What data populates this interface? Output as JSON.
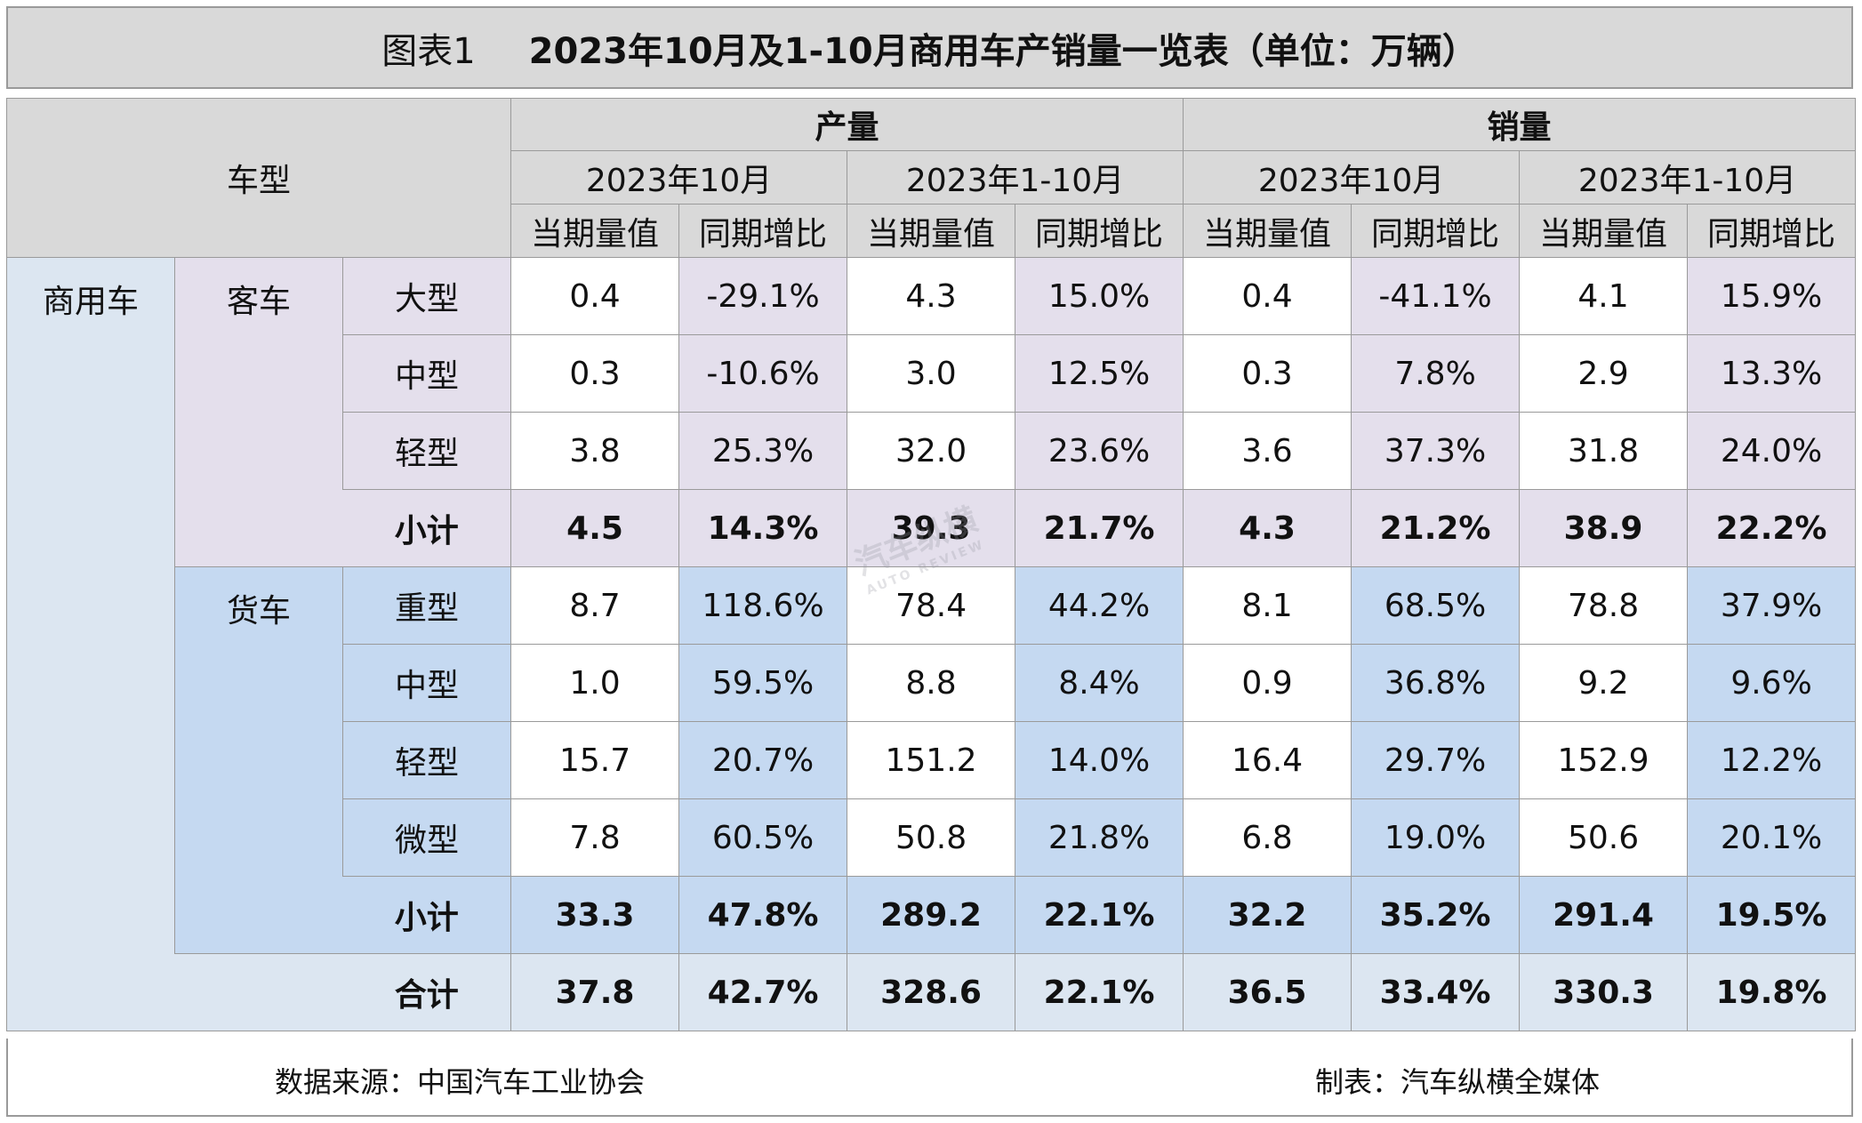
{
  "title": {
    "label": "图表1",
    "text": "2023年10月及1-10月商用车产销量一览表（单位：万辆）"
  },
  "colors": {
    "header": "#d9d9d9",
    "commercial": "#dce6f1",
    "bus": "#e4dfec",
    "truck": "#c5d9f1",
    "white": "#ffffff"
  },
  "header": {
    "vehicle_type": "车型",
    "groups": [
      "产量",
      "销量"
    ],
    "periods": [
      "2023年10月",
      "2023年1-10月",
      "2023年10月",
      "2023年1-10月"
    ],
    "metrics": [
      "当期量值",
      "同期增比",
      "当期量值",
      "同期增比",
      "当期量值",
      "同期增比",
      "当期量值",
      "同期增比"
    ]
  },
  "category": "商用车",
  "groups": [
    {
      "name": "客车",
      "color_key": "bus",
      "rows": [
        {
          "type": "大型",
          "values": [
            "0.4",
            "-29.1%",
            "4.3",
            "15.0%",
            "0.4",
            "-41.1%",
            "4.1",
            "15.9%"
          ]
        },
        {
          "type": "中型",
          "values": [
            "0.3",
            "-10.6%",
            "3.0",
            "12.5%",
            "0.3",
            "7.8%",
            "2.9",
            "13.3%"
          ]
        },
        {
          "type": "轻型",
          "values": [
            "3.8",
            "25.3%",
            "32.0",
            "23.6%",
            "3.6",
            "37.3%",
            "31.8",
            "24.0%"
          ]
        }
      ],
      "subtotal": {
        "type": "小计",
        "values": [
          "4.5",
          "14.3%",
          "39.3",
          "21.7%",
          "4.3",
          "21.2%",
          "38.9",
          "22.2%"
        ]
      }
    },
    {
      "name": "货车",
      "color_key": "truck",
      "rows": [
        {
          "type": "重型",
          "values": [
            "8.7",
            "118.6%",
            "78.4",
            "44.2%",
            "8.1",
            "68.5%",
            "78.8",
            "37.9%"
          ]
        },
        {
          "type": "中型",
          "values": [
            "1.0",
            "59.5%",
            "8.8",
            "8.4%",
            "0.9",
            "36.8%",
            "9.2",
            "9.6%"
          ]
        },
        {
          "type": "轻型",
          "values": [
            "15.7",
            "20.7%",
            "151.2",
            "14.0%",
            "16.4",
            "29.7%",
            "152.9",
            "12.2%"
          ]
        },
        {
          "type": "微型",
          "values": [
            "7.8",
            "60.5%",
            "50.8",
            "21.8%",
            "6.8",
            "19.0%",
            "50.6",
            "20.1%"
          ]
        }
      ],
      "subtotal": {
        "type": "小计",
        "values": [
          "33.3",
          "47.8%",
          "289.2",
          "22.1%",
          "32.2",
          "35.2%",
          "291.4",
          "19.5%"
        ]
      }
    }
  ],
  "total": {
    "type": "合计",
    "values": [
      "37.8",
      "42.7%",
      "328.6",
      "22.1%",
      "36.5",
      "33.4%",
      "330.3",
      "19.8%"
    ]
  },
  "footer": {
    "source": "数据来源：中国汽车工业协会",
    "maker": "制表：汽车纵横全媒体"
  },
  "watermark": {
    "text": "汽车纵横",
    "sub": "AUTO REVIEW"
  }
}
